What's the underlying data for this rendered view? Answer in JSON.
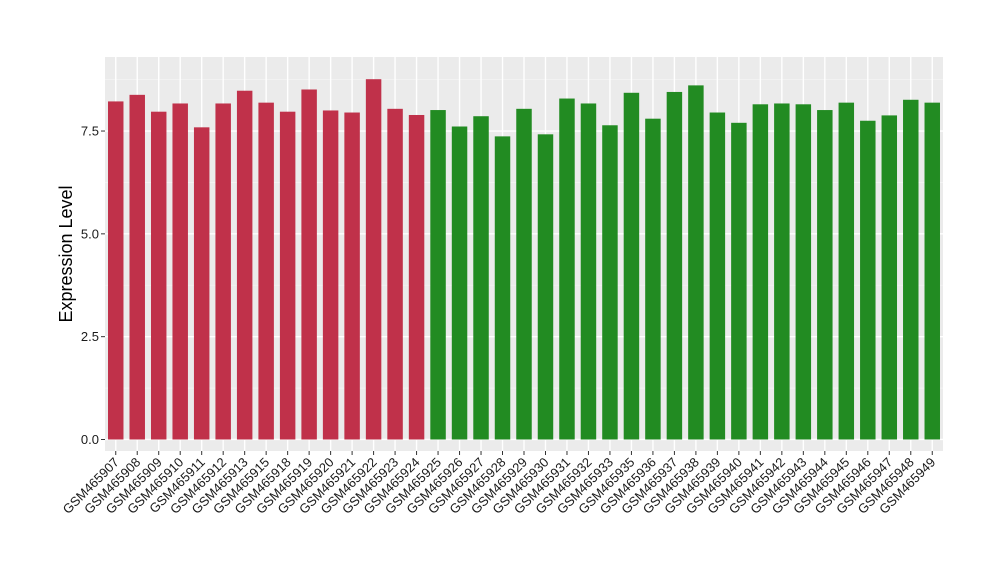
{
  "chart_data": {
    "type": "bar",
    "title": "",
    "xlabel": "",
    "ylabel": "Expression Level",
    "ylim": [
      -0.28,
      9.3
    ],
    "yticks": [
      0.0,
      2.5,
      5.0,
      7.5
    ],
    "ytick_labels": [
      "0.0",
      "2.5",
      "5.0",
      "7.5"
    ],
    "grid": true,
    "legend": "none",
    "colors": {
      "group_a": "#C0314A",
      "group_b": "#228B22",
      "panel": "#EBEBEB",
      "grid_major": "#FFFFFF",
      "grid_minor": "#F4F4F4"
    },
    "categories": [
      "GSM465907",
      "GSM465908",
      "GSM465909",
      "GSM465910",
      "GSM465911",
      "GSM465912",
      "GSM465913",
      "GSM465915",
      "GSM465918",
      "GSM465919",
      "GSM465920",
      "GSM465921",
      "GSM465922",
      "GSM465923",
      "GSM465924",
      "GSM465925",
      "GSM465926",
      "GSM465927",
      "GSM465928",
      "GSM465929",
      "GSM465930",
      "GSM465931",
      "GSM465932",
      "GSM465933",
      "GSM465935",
      "GSM465936",
      "GSM465937",
      "GSM465938",
      "GSM465939",
      "GSM465940",
      "GSM465941",
      "GSM465942",
      "GSM465943",
      "GSM465944",
      "GSM465945",
      "GSM465946",
      "GSM465947",
      "GSM465948",
      "GSM465949"
    ],
    "values": [
      8.22,
      8.38,
      7.97,
      8.17,
      7.59,
      8.17,
      8.48,
      8.19,
      7.97,
      8.51,
      8.0,
      7.95,
      8.76,
      8.04,
      7.89,
      8.01,
      7.61,
      7.86,
      7.37,
      8.04,
      7.42,
      8.29,
      8.17,
      7.64,
      8.43,
      7.8,
      8.45,
      8.61,
      7.95,
      7.7,
      8.15,
      8.17,
      8.15,
      8.01,
      8.19,
      7.75,
      7.88,
      8.26,
      8.19
    ],
    "groups": [
      "a",
      "a",
      "a",
      "a",
      "a",
      "a",
      "a",
      "a",
      "a",
      "a",
      "a",
      "a",
      "a",
      "a",
      "a",
      "b",
      "b",
      "b",
      "b",
      "b",
      "b",
      "b",
      "b",
      "b",
      "b",
      "b",
      "b",
      "b",
      "b",
      "b",
      "b",
      "b",
      "b",
      "b",
      "b",
      "b",
      "b",
      "b",
      "b"
    ]
  }
}
